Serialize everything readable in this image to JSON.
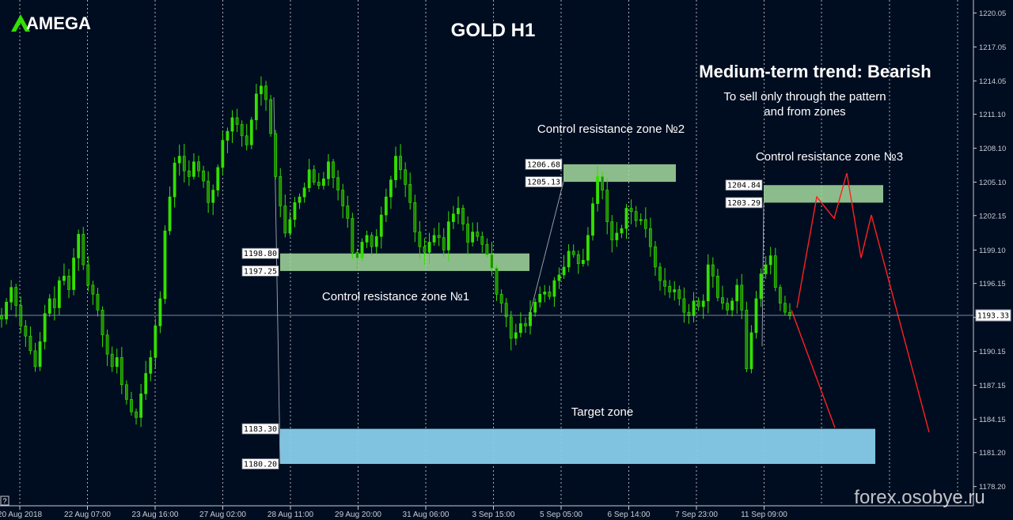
{
  "brand": {
    "name": "AMEGA"
  },
  "watermark": "forex.osobye.ru",
  "help_glyph": "?",
  "colors": {
    "background": "#000d20",
    "candle": "#33e000",
    "candle_dim": "#1e8a00",
    "grid": "#c8ccd4",
    "text": "#ffffff",
    "axis_text": "#c8ccd4",
    "resistance_zone": "#a6dca0",
    "target_zone": "#87ceeb",
    "projection": "#ff2020",
    "connector": "#a0a8b4",
    "current_price_line": "#9aa4b4"
  },
  "chart_data": {
    "type": "candlestick",
    "title": "GOLD H1",
    "symbol": "GOLD",
    "timeframe": "H1",
    "ylim": [
      1176.5,
      1221.2
    ],
    "y_ticks": [
      1220.05,
      1217.05,
      1214.05,
      1211.1,
      1208.1,
      1205.1,
      1202.15,
      1199.1,
      1196.15,
      1193.15,
      1190.15,
      1187.15,
      1184.15,
      1181.2,
      1178.2
    ],
    "x_ticks": [
      "20 Aug 2018",
      "22 Aug 07:00",
      "23 Aug 16:00",
      "27 Aug 02:00",
      "28 Aug 11:00",
      "29 Aug 20:00",
      "31 Aug 06:00",
      "3 Sep 15:00",
      "5 Sep 05:00",
      "6 Sep 14:00",
      "7 Sep 23:00",
      "11 Sep 09:00"
    ],
    "grid": "vertical dotted",
    "current_price": 1193.33,
    "annotations": {
      "trend": "Medium-term trend: Bearish",
      "advice_line1": "To sell only through the pattern",
      "advice_line2": "and from zones"
    },
    "zones": [
      {
        "name": "Control resistance zone №1",
        "high": 1198.8,
        "low": 1197.25,
        "high_label": "1198.80",
        "low_label": "1197.25"
      },
      {
        "name": "Control resistance zone №2",
        "high": 1206.68,
        "low": 1205.13,
        "high_label": "1206.68",
        "low_label": "1205.13"
      },
      {
        "name": "Control resistance zone №3",
        "high": 1204.84,
        "low": 1203.29,
        "high_label": "1204.84",
        "low_label": "1203.29"
      },
      {
        "name": "Target zone",
        "high": 1183.3,
        "low": 1180.2,
        "high_label": "1183.30",
        "low_label": "1180.20"
      }
    ],
    "close_series": [
      1193.0,
      1194.5,
      1195.8,
      1194.2,
      1192.4,
      1191.5,
      1190.2,
      1188.8,
      1191.0,
      1193.5,
      1194.8,
      1194.0,
      1196.4,
      1196.8,
      1195.6,
      1198.4,
      1200.5,
      1197.8,
      1196.0,
      1195.2,
      1193.8,
      1191.6,
      1189.9,
      1188.8,
      1189.6,
      1187.2,
      1185.9,
      1184.8,
      1184.3,
      1186.4,
      1188.2,
      1189.6,
      1192.4,
      1194.8,
      1200.8,
      1203.8,
      1206.8,
      1207.4,
      1206.1,
      1205.6,
      1206.9,
      1206.1,
      1205.2,
      1203.3,
      1204.4,
      1206.4,
      1208.8,
      1209.6,
      1210.8,
      1210.2,
      1209.2,
      1208.4,
      1210.6,
      1212.9,
      1213.6,
      1212.4,
      1209.4,
      1205.6,
      1203.0,
      1200.6,
      1201.8,
      1203.3,
      1203.8,
      1204.6,
      1206.2,
      1205.1,
      1204.8,
      1205.4,
      1206.9,
      1205.5,
      1204.4,
      1203.0,
      1201.9,
      1198.9,
      1198.4,
      1199.8,
      1200.4,
      1199.4,
      1200.3,
      1202.2,
      1203.8,
      1205.3,
      1207.4,
      1206.2,
      1204.9,
      1203.3,
      1200.7,
      1199.4,
      1198.9,
      1199.8,
      1200.4,
      1200.2,
      1199.1,
      1201.6,
      1202.3,
      1202.8,
      1201.4,
      1199.8,
      1200.7,
      1200.3,
      1199.6,
      1198.7,
      1197.5,
      1195.2,
      1194.4,
      1193.2,
      1191.3,
      1191.8,
      1192.6,
      1192.4,
      1193.6,
      1194.5,
      1195.2,
      1195.4,
      1195.0,
      1196.4,
      1196.9,
      1197.6,
      1199.0,
      1198.7,
      1197.9,
      1198.2,
      1200.4,
      1203.2,
      1205.6,
      1204.4,
      1201.6,
      1200.0,
      1200.6,
      1201.0,
      1202.8,
      1202.5,
      1201.7,
      1201.8,
      1201.0,
      1199.4,
      1197.6,
      1196.4,
      1195.9,
      1195.4,
      1195.6,
      1194.8,
      1193.6,
      1193.3,
      1194.6,
      1194.1,
      1194.6,
      1197.8,
      1196.8,
      1194.9,
      1194.4,
      1193.8,
      1194.6,
      1196.0,
      1193.8,
      1188.6,
      1191.8,
      1194.8,
      1197.0,
      1197.8,
      1198.6,
      1195.8,
      1194.4,
      1193.6,
      1193.3
    ],
    "projections": [
      {
        "name": "bearish-scenario-a",
        "points": [
          [
            1193.8,
            "11 Sep 09:00"
          ],
          [
            1183.4,
            "Target zone"
          ]
        ]
      },
      {
        "name": "bearish-scenario-b",
        "points": [
          [
            1194.0,
            "start"
          ],
          [
            1203.8,
            "p1"
          ],
          [
            1201.9,
            "p2"
          ],
          [
            1205.9,
            "p3"
          ],
          [
            1198.4,
            "p4"
          ],
          [
            1202.2,
            "p5"
          ],
          [
            1183.0,
            "end"
          ]
        ]
      }
    ]
  }
}
